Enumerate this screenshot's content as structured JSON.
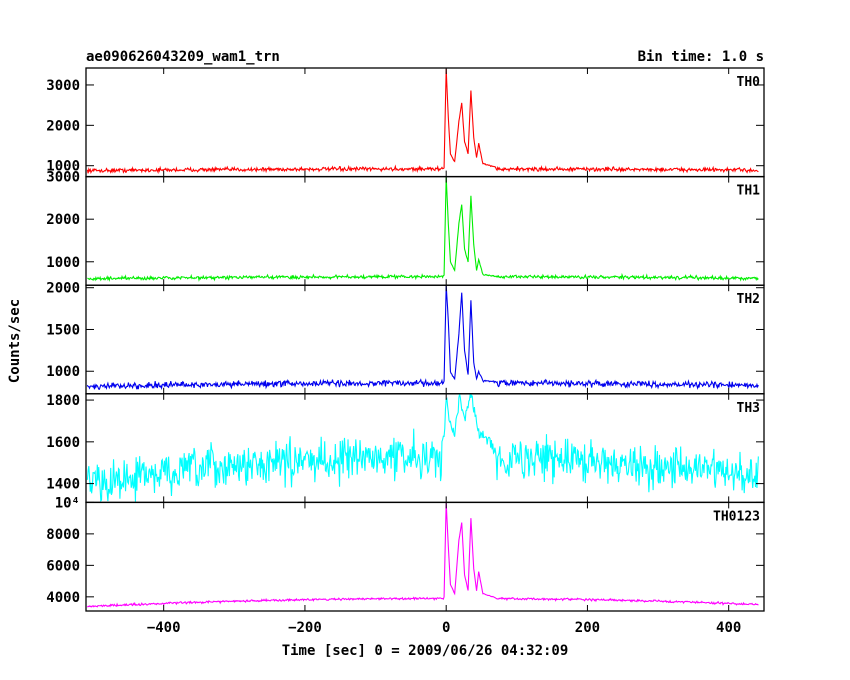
{
  "header": {
    "title": "ae090626043209_wam1_trn",
    "bin_time": "Bin time: 1.0 s"
  },
  "chart_data": {
    "type": "line",
    "xlabel": "Time [sec] 0 = 2009/06/26 04:32:09",
    "ylabel": "Counts/sec",
    "xlim": [
      -510,
      450
    ],
    "x_ticks": [
      -400,
      -200,
      0,
      200,
      400
    ],
    "x_tick_labels": [
      "−400",
      "−200",
      "0",
      "200",
      "400"
    ],
    "panels": [
      {
        "name": "TH0",
        "color": "#ff0000",
        "ylim": [
          730,
          3420
        ],
        "ticks": [
          1000,
          2000,
          3000
        ],
        "tick_labels": [
          "1000",
          "2000",
          "3000"
        ],
        "baseline": {
          "edges": 880,
          "center": 920
        },
        "noise": 30,
        "points": [
          [
            -3,
            950
          ],
          [
            0,
            3400
          ],
          [
            3,
            2200
          ],
          [
            6,
            1300
          ],
          [
            12,
            1100
          ],
          [
            18,
            2100
          ],
          [
            22,
            2550
          ],
          [
            26,
            1600
          ],
          [
            31,
            1300
          ],
          [
            35,
            2850
          ],
          [
            39,
            1700
          ],
          [
            43,
            1200
          ],
          [
            46,
            1550
          ],
          [
            52,
            1050
          ],
          [
            70,
            960
          ]
        ]
      },
      {
        "name": "TH1",
        "color": "#00ee00",
        "ylim": [
          450,
          3000
        ],
        "ticks": [
          1000,
          2000,
          3000
        ],
        "tick_labels": [
          "1000",
          "2000",
          "3000"
        ],
        "baseline": {
          "edges": 600,
          "center": 650
        },
        "noise": 25,
        "points": [
          [
            -3,
            680
          ],
          [
            0,
            3000
          ],
          [
            3,
            1900
          ],
          [
            6,
            1000
          ],
          [
            12,
            800
          ],
          [
            18,
            1900
          ],
          [
            22,
            2350
          ],
          [
            26,
            1300
          ],
          [
            31,
            1000
          ],
          [
            35,
            2550
          ],
          [
            39,
            1400
          ],
          [
            43,
            800
          ],
          [
            46,
            1050
          ],
          [
            52,
            700
          ],
          [
            70,
            660
          ]
        ]
      },
      {
        "name": "TH2",
        "color": "#0000ee",
        "ylim": [
          730,
          2030
        ],
        "ticks": [
          1000,
          1500,
          2000
        ],
        "tick_labels": [
          "1000",
          "1500",
          "2000"
        ],
        "baseline": {
          "edges": 820,
          "center": 860
        },
        "noise": 22,
        "points": [
          [
            -3,
            880
          ],
          [
            0,
            2030
          ],
          [
            3,
            1600
          ],
          [
            6,
            1000
          ],
          [
            12,
            900
          ],
          [
            18,
            1450
          ],
          [
            22,
            1950
          ],
          [
            26,
            1250
          ],
          [
            31,
            950
          ],
          [
            35,
            1850
          ],
          [
            39,
            1100
          ],
          [
            43,
            900
          ],
          [
            46,
            1000
          ],
          [
            52,
            880
          ],
          [
            70,
            870
          ]
        ]
      },
      {
        "name": "TH3",
        "color": "#00ffff",
        "ylim": [
          1310,
          1830
        ],
        "ticks": [
          1400,
          1600,
          1800
        ],
        "tick_labels": [
          "1400",
          "1600",
          "1800"
        ],
        "baseline": {
          "edges": 1400,
          "center": 1530
        },
        "noise": 60,
        "points": [
          [
            -3,
            1600
          ],
          [
            0,
            1830
          ],
          [
            5,
            1700
          ],
          [
            12,
            1650
          ],
          [
            20,
            1830
          ],
          [
            25,
            1700
          ],
          [
            35,
            1830
          ],
          [
            45,
            1650
          ],
          [
            70,
            1560
          ]
        ]
      },
      {
        "name": "TH0123",
        "color": "#ff00ff",
        "ylim": [
          3100,
          10000
        ],
        "ticks": [
          4000,
          6000,
          8000,
          10000
        ],
        "tick_labels": [
          "4000",
          "6000",
          "8000",
          "10⁴"
        ],
        "baseline": {
          "edges": 3400,
          "center": 3900
        },
        "noise": 40,
        "points": [
          [
            -3,
            4000
          ],
          [
            0,
            10000
          ],
          [
            3,
            7200
          ],
          [
            6,
            4800
          ],
          [
            12,
            4200
          ],
          [
            18,
            7600
          ],
          [
            22,
            8700
          ],
          [
            26,
            5400
          ],
          [
            31,
            4400
          ],
          [
            35,
            9000
          ],
          [
            39,
            5800
          ],
          [
            43,
            4400
          ],
          [
            46,
            5600
          ],
          [
            52,
            4200
          ],
          [
            70,
            3950
          ]
        ]
      }
    ]
  }
}
